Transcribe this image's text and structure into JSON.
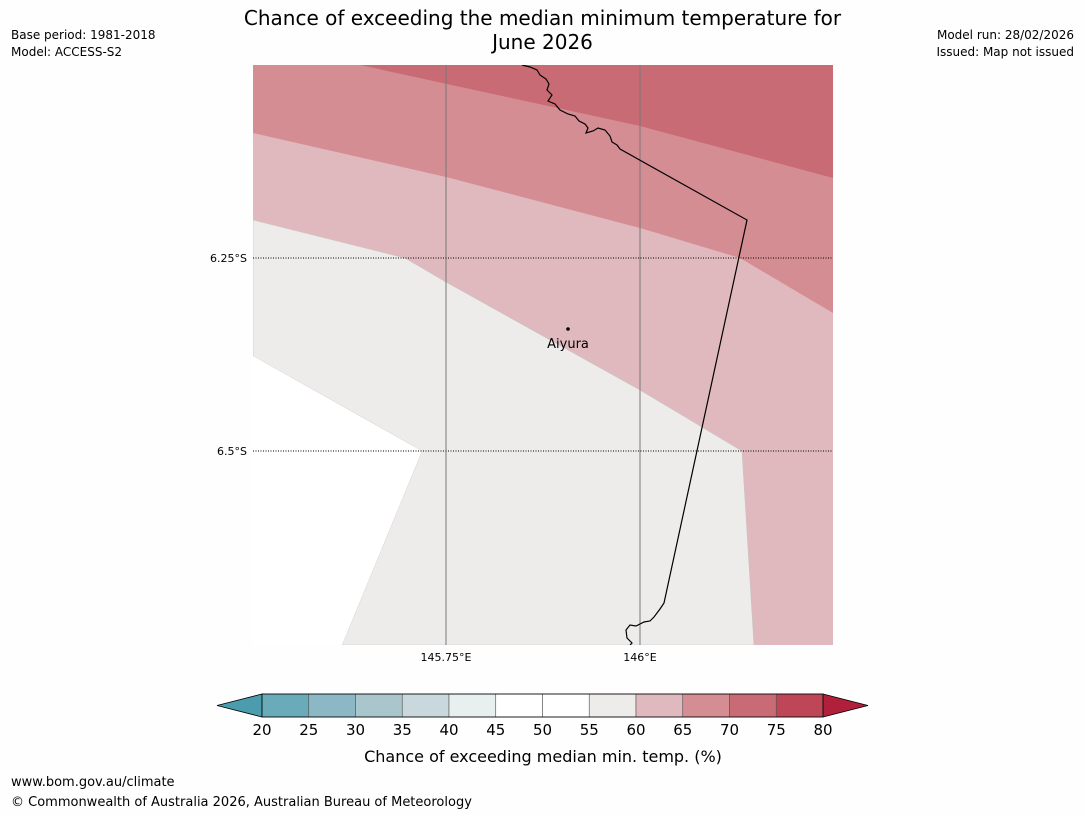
{
  "header": {
    "title_line1": "Chance of exceeding the median minimum temperature for",
    "title_line2": "June 2026",
    "base_period": "Base period: 1981-2018",
    "model": "Model: ACCESS-S2",
    "model_run": "Model run: 28/02/2026",
    "issued": "Issued: Map not issued"
  },
  "map": {
    "place_name": "Aiyura",
    "lat_labels": [
      "6.25°S",
      "6.5°S"
    ],
    "lon_labels": [
      "145.75°E",
      "146°E"
    ]
  },
  "legend": {
    "ticks": [
      "20",
      "25",
      "30",
      "35",
      "40",
      "45",
      "50",
      "55",
      "60",
      "65",
      "70",
      "75",
      "80"
    ],
    "label": "Chance of exceeding median min. temp. (%)",
    "colors": [
      "#6aabb9",
      "#8cb7c4",
      "#a8c6cc",
      "#c9d8dc",
      "#e8efef",
      "#ffffff",
      "#ffffff",
      "#eeeceb",
      "#e0b9be",
      "#d58d94",
      "#c96b74",
      "#be4656"
    ],
    "low_extend_color": "#4b9cad",
    "high_extend_color": "#b0203a"
  },
  "footer": {
    "url": "www.bom.gov.au/climate",
    "copyright": "© Commonwealth of Australia 2026, Australian Bureau of Meteorology"
  }
}
